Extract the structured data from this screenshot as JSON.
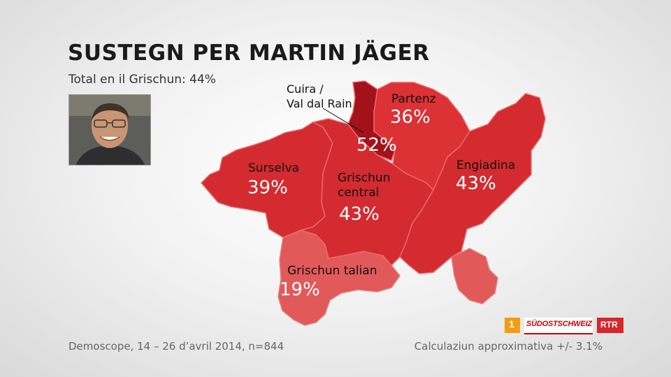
{
  "title": "SUSTEGN PER MARTIN JÄGER",
  "subtitle": "Total en il Grischun: 44%",
  "regions": [
    {
      "id": "surselva",
      "label": "Surselva",
      "value": "39%",
      "color": "#d32b2f"
    },
    {
      "id": "cuira",
      "label_line1": "Cuira /",
      "label_line2": "Val dal Rain",
      "value": "52%",
      "color": "#a3111b"
    },
    {
      "id": "partenz",
      "label": "Partenz",
      "value": "36%",
      "color": "#dc3135"
    },
    {
      "id": "grischun-central",
      "label_line1": "Grischun",
      "label_line2": "central",
      "value": "43%",
      "color": "#d32b2f"
    },
    {
      "id": "engiadina",
      "label": "Engiadina",
      "value": "43%",
      "color": "#d32b2f"
    },
    {
      "id": "grischun-talian",
      "label": "Grischun talian",
      "value": "19%",
      "color": "#e2595a"
    }
  ],
  "source": "Demoscope, 14 – 26 d’avril 2014, n=844",
  "margin_note": "Calculaziun approximativa +/- 3.1%",
  "logos": {
    "one": "1",
    "sudostschweiz": "SÜDOSTSCHWEIZ",
    "rtr": "RTR"
  }
}
